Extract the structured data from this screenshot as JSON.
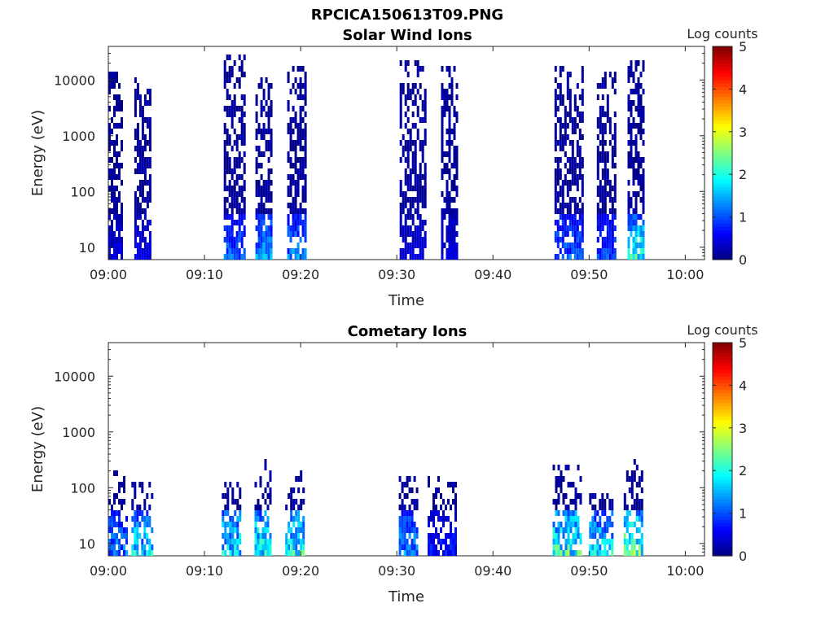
{
  "figure_title": "RPCICA150613T09.PNG",
  "chart_data": [
    {
      "type": "heatmap",
      "title": "Solar Wind Ions",
      "xlabel": "Time",
      "ylabel": "Energy (eV)",
      "y_scale": "log",
      "ylim": [
        6,
        40000
      ],
      "xlim_minutes": [
        0,
        62
      ],
      "x_ticks": [
        "09:00",
        "09:10",
        "09:20",
        "09:30",
        "09:40",
        "09:50",
        "10:00"
      ],
      "y_ticks": [
        "10",
        "100",
        "1000",
        "10000"
      ],
      "colorbar": {
        "label": "Log counts",
        "range": [
          0,
          5
        ],
        "ticks": [
          "0",
          "1",
          "2",
          "3",
          "4",
          "5"
        ],
        "colormap": "jet"
      },
      "bursts": [
        {
          "start_min": 0.0,
          "end_min": 1.3,
          "emax_eV": 15000,
          "peak_log_counts": 0.6
        },
        {
          "start_min": 2.7,
          "end_min": 4.4,
          "emax_eV": 13000,
          "peak_log_counts": 0.7
        },
        {
          "start_min": 12.0,
          "end_min": 14.1,
          "emax_eV": 30000,
          "peak_log_counts": 1.5
        },
        {
          "start_min": 15.3,
          "end_min": 17.0,
          "emax_eV": 12000,
          "peak_log_counts": 2.0
        },
        {
          "start_min": 18.6,
          "end_min": 20.6,
          "emax_eV": 22000,
          "peak_log_counts": 1.7
        },
        {
          "start_min": 30.3,
          "end_min": 33.0,
          "emax_eV": 25000,
          "peak_log_counts": 0.6
        },
        {
          "start_min": 34.6,
          "end_min": 36.3,
          "emax_eV": 18000,
          "peak_log_counts": 0.6
        },
        {
          "start_min": 46.4,
          "end_min": 49.3,
          "emax_eV": 19000,
          "peak_log_counts": 1.5
        },
        {
          "start_min": 50.8,
          "end_min": 52.6,
          "emax_eV": 15000,
          "peak_log_counts": 1.3
        },
        {
          "start_min": 54.0,
          "end_min": 55.6,
          "emax_eV": 23000,
          "peak_log_counts": 2.8
        }
      ]
    },
    {
      "type": "heatmap",
      "title": "Cometary Ions",
      "xlabel": "Time",
      "ylabel": "Energy (eV)",
      "y_scale": "log",
      "ylim": [
        6,
        40000
      ],
      "xlim_minutes": [
        0,
        62
      ],
      "x_ticks": [
        "09:00",
        "09:10",
        "09:20",
        "09:30",
        "09:40",
        "09:50",
        "10:00"
      ],
      "y_ticks": [
        "10",
        "100",
        "1000",
        "10000"
      ],
      "colorbar": {
        "label": "Log counts",
        "range": [
          0,
          5
        ],
        "ticks": [
          "0",
          "1",
          "2",
          "3",
          "4",
          "5"
        ],
        "colormap": "jet"
      },
      "bursts": [
        {
          "start_min": 0.0,
          "end_min": 1.8,
          "emax_eV": 250,
          "peak_log_counts": 1.7
        },
        {
          "start_min": 2.4,
          "end_min": 4.6,
          "emax_eV": 130,
          "peak_log_counts": 2.4
        },
        {
          "start_min": 11.8,
          "end_min": 13.8,
          "emax_eV": 150,
          "peak_log_counts": 2.5
        },
        {
          "start_min": 15.2,
          "end_min": 16.8,
          "emax_eV": 400,
          "peak_log_counts": 2.8
        },
        {
          "start_min": 18.4,
          "end_min": 20.4,
          "emax_eV": 250,
          "peak_log_counts": 2.7
        },
        {
          "start_min": 30.2,
          "end_min": 32.0,
          "emax_eV": 200,
          "peak_log_counts": 1.8
        },
        {
          "start_min": 33.2,
          "end_min": 36.0,
          "emax_eV": 180,
          "peak_log_counts": 1.0
        },
        {
          "start_min": 46.2,
          "end_min": 49.2,
          "emax_eV": 300,
          "peak_log_counts": 2.9
        },
        {
          "start_min": 50.0,
          "end_min": 52.4,
          "emax_eV": 100,
          "peak_log_counts": 2.4
        },
        {
          "start_min": 53.6,
          "end_min": 55.6,
          "emax_eV": 500,
          "peak_log_counts": 3.2
        }
      ]
    }
  ]
}
